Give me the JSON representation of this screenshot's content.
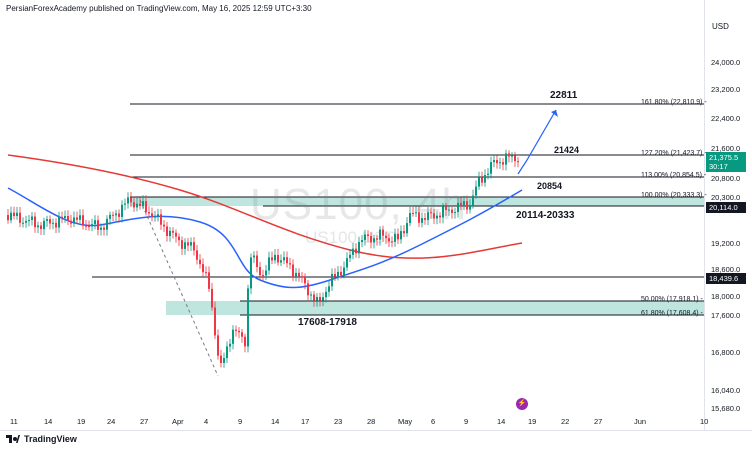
{
  "header": {
    "publisher": "PersianForexAcademy published on TradingView.com, May 16, 2025 12:59 UTC+3:30"
  },
  "currency": "USD",
  "watermark": {
    "symbol": "US100, 4h",
    "sub": "US100 USD"
  },
  "footer": {
    "logo_text": "TradingView"
  },
  "price_axis": {
    "labels": [
      "24,000.0",
      "23,200.0",
      "22,400.0",
      "21,600.0",
      "20,800.0",
      "20,300.0",
      "19,200.0",
      "18,600.0",
      "18,000.0",
      "17,600.0",
      "16,800.0",
      "16,040.0",
      "15,680.0"
    ],
    "badges": [
      {
        "value": "21,375.5",
        "sub": "30:17",
        "color": "#089981"
      },
      {
        "value": "20,114.0",
        "color": "#131722"
      },
      {
        "value": "18,439.6",
        "color": "#131722"
      }
    ]
  },
  "time_axis": {
    "labels": [
      "11",
      "14",
      "19",
      "24",
      "27",
      "Apr",
      "4",
      "9",
      "14",
      "17",
      "23",
      "28",
      "May",
      "6",
      "9",
      "14",
      "19",
      "22",
      "27",
      "Jun",
      "10"
    ]
  },
  "fib_labels": [
    "161.80% (22,810.9)",
    "127.20% (21,423.7)",
    "113.00% (20,854.5)",
    "100.00% (20,333.3)",
    "50.00% (17,918.1)",
    "61.80% (17,608.4)"
  ],
  "annotations": {
    "level_22811": "22811",
    "level_21424": "21424",
    "level_20854": "20854",
    "zone_top": "20114-20333",
    "zone_bottom": "17608-17918"
  },
  "colors": {
    "bull": "#089981",
    "bear": "#f23645",
    "ma_fast": "#2962ff",
    "ma_slow": "#e53935",
    "zone": "#a8dcd3",
    "arrow": "#2962ff"
  }
}
